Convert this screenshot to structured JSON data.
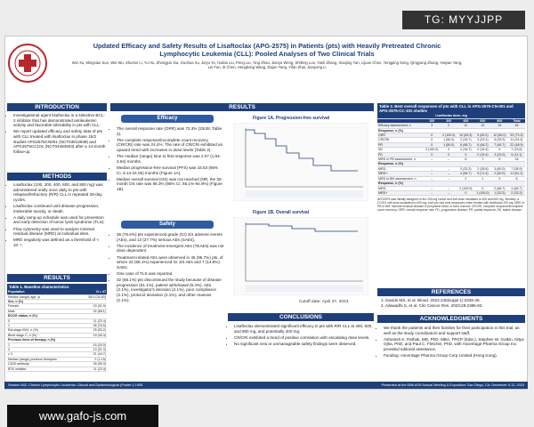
{
  "watermark_top": "TG: MYYJJPP",
  "watermark_bottom": "www.gafo-js.com",
  "header": {
    "title": "Updated Efficacy and Safety Results of Lisaftoclax (APG-2575) in Patients (pts) with Heavily Pretreated Chronic Lymphocytic Leukemia (CLL): Pooled Analyses of Two Clinical Trials",
    "authors": "Wei Xu, Mingxiao Sun, Wei Wu, Shumin Li, Yu Hu, Zhongjun Xia, Guohua Xu, Jieyu Ye, Huilan Liu, Peng Liu, Ying Zhao, Jianyu Weng, Shifeng Lou, Yanli Zhang, Xiaojing Yan, Lijuan Chen, Yongping Song, Qingyang Zhang, Haiyan Yang, Lei Fan, Zi Chen, Hengbang Wang, Dajun Yang, Yifan Zhai, Jianyong Li"
  },
  "introduction": {
    "heading": "INTRODUCTION",
    "bullets": [
      "Investigational agent lisaftoclax is a selective BCL-2 inhibitor that has demonstrated antileukemic activity and favorable tolerability in pts with CLL.",
      "We report updated efficacy and safety data of pts with CLL treated with lisaftoclax in phase 1b/2 studies APG2575CN001 (NCT03913949) and APG2575CC101 (NCT04494503) after a 14-month follow-up."
    ]
  },
  "methods": {
    "heading": "METHODS",
    "bullets": [
      "Lisaftoclax (100, 200, 400, 600, and 800 mg) was administered orally once daily to pts with relapsed/refractory (R/R) CLL in repeated 28-day cycles.",
      "Lisaftoclax continued until disease progression, intolerable toxicity, or death.",
      "A daily ramp-up schedule was used for prevention and early detection of tumor lysis syndrome (TLS).",
      "Flow cytometry was used to analyze minimal residual disease (MRD) at individual sites.",
      "MRD negativity was defined as a threshold of < 10⁻⁴."
    ]
  },
  "results_left": {
    "heading": "RESULTS",
    "table": {
      "title": "Table 1. Baseline characteristics",
      "header": [
        "Population",
        "N = 47"
      ],
      "rows": [
        [
          "Median (range) age, yr",
          "58.0 (34-80)"
        ],
        [
          "Sex, n (%)"
        ],
        [
          "Female",
          "15 (31.9)"
        ],
        [
          "Male",
          "32 (68.1)"
        ],
        [
          "ECOG status, n (%)"
        ],
        [
          "0",
          "11 (23.4)"
        ],
        [
          "1",
          "36 (76.6)"
        ],
        [
          "Rai stage III/IV, n (%)",
          "25 (53.2)"
        ],
        [
          "Binet stage C, n (%)",
          "19 (40.4)"
        ],
        [
          "Previous lines of therapy, n (%)"
        ],
        [
          "1",
          "16 (34.0)"
        ],
        [
          "2",
          "10 (21.3)"
        ],
        [
          "≥ 3",
          "21 (44.7)"
        ],
        [
          "Median (range) previous therapies",
          "2 (1-15)"
        ],
        [
          "CD20 antibody",
          "26 (55.3)"
        ],
        [
          "BTK inhibitor",
          "11 (23.4)"
        ]
      ]
    }
  },
  "results_main": {
    "heading": "RESULTS",
    "efficacy": {
      "heading": "Efficacy",
      "bullets": [
        "The overall response rate (ORR) was 73.3% (33/45; Table 2).",
        "The complete response/incomplete count recovery (CR/CRi) rate was 24.4%. The rate of CR/CRi exhibited an upward trend with increases in dose levels (Table 2).",
        "The median (range) time to first response was 2.07 (1.94-3.94) months.",
        "Median progression-free survival (PFS) was 18.53 (95% CI, 9.13-24.05) months (Figure 1A).",
        "Median overall survival (OS) was not reached (NR; the 30-month OS rate was 86.3% (95% CI, 66.1%-94.9%) (Figure 1B)."
      ]
    },
    "safety": {
      "heading": "Safety",
      "bullets": [
        "36 (76.6%) pts experienced grade (Gr) 3/4 adverse events (AEs), and 13 (27.7%) serious AEs (SAEs).",
        "The incidence of treatment-emergent AEs (TEAEs) was not dose dependent.",
        "Treatment-related AEs were observed in 45 (95.7%) pts, of whom 32 (68.1%) experienced Gr 3/4 AEs and 7 (14.9%) SAEs.",
        "One case of TLS was reported.",
        "32 (68.1%) pts discontinued the study because of disease progression (51.1%), patient withdrawal (6.4%), AEs (2.1%), investigator's decision (2.1%), poor compliance (2.1%), protocol deviation (2.1%), and other reasons (2.1%)."
      ]
    },
    "figure_1a": "Figure 1A. Progression-free survival",
    "figure_1b": "Figure 1B. Overall survival",
    "cutoff": "Cutoff date: April 27, 2023."
  },
  "conclusions": {
    "heading": "CONCLUSIONS",
    "bullets": [
      "Lisaftoclax demonstrated significant efficacy in pts with R/R CLL at 400, 600, and 800 mg, and potentially 200 mg.",
      "CR/CRi exhibited a trend of positive correlation with escalating dose levels.",
      "No significant new or unmanageable safety findings were observed."
    ]
  },
  "table_2": {
    "title": "Table 2. Best overall responses of pts with CLL in APG-2575-CN-001 and APG-2575-CC-101 studies",
    "dose_header": "Lisaftoclax dose, mg",
    "doses": [
      "100",
      "200",
      "400",
      "600",
      "800",
      "Total"
    ],
    "rows": [
      [
        "Efficacy assessment, n",
        "3",
        "2",
        "12",
        "13",
        "15",
        "45"
      ],
      [
        "Response, n (%)"
      ],
      [
        "ORR",
        "0",
        "2 (100.0)",
        "10 (83.3)",
        "9 (69.2)",
        "12 (80.0)",
        "33 (73.3)"
      ],
      [
        "CR/CRi",
        "0",
        "1 (50.0)",
        "2 (16.7)",
        "3 (23.1)",
        "5 (33.3)",
        "11 (24.4)"
      ],
      [
        "PR",
        "0",
        "1 (50.0)",
        "8 (66.7)",
        "6 (46.2)",
        "7 (46.7)",
        "22 (48.9)"
      ],
      [
        "SD",
        "3 (100.0)",
        "0",
        "2 (16.7)",
        "2 (15.4)",
        "0",
        "7 (15.6)"
      ],
      [
        "PD",
        "0",
        "0",
        "0",
        "2 (15.4)",
        "3 (20.0)",
        "5 (11.1)"
      ],
      [
        "MRD in PB assessment, n",
        "–",
        "–",
        "6",
        "7",
        "5",
        "18"
      ],
      [
        "Response, n (%)"
      ],
      [
        "MRD-",
        "–",
        "–",
        "2 (33.3)",
        "2 (28.6)",
        "3 (60.0)",
        "7 (38.9)"
      ],
      [
        "MRD+",
        "–",
        "–",
        "4 (66.7)",
        "5 (71.4)",
        "2 (40.0)",
        "11 (61.1)"
      ],
      [
        "MRD in BM assessment, n",
        "–",
        "–",
        "2",
        "1",
        "3",
        "6"
      ],
      [
        "Response, n (%)"
      ],
      [
        "MRD-",
        "–",
        "–",
        "2 (100.0)",
        "0",
        "2 (66.7)",
        "4 (66.7)"
      ],
      [
        "MRD+",
        "–",
        "–",
        "0",
        "1 (100.0)",
        "1 (33.3)",
        "2 (33.3)"
      ]
    ],
    "note": "APG2575 was initially assigned to the 200-mg cohort and self-dose escalated to 400 and 600 mg. Similarly, a CC001 self-dose escalated to 600 mg; both pts had best responses when treated with lisaftoclax 200 mg. MRD in PB or BM: minimal residual disease in peripheral blood or bone marrow; CR/CRi, complete response/incomplete count recovery; ORR, overall response rate; PD, progressive disease; PR, partial response; SD, stable disease."
  },
  "references": {
    "heading": "REFERENCES",
    "items": [
      "1. Davids MS, et al. Blood. 2022;140(suppl 1):2326-28.",
      "2. Ailawadhi S, et al. Clin Cancer Res. 2023;29:2385-93."
    ]
  },
  "acknowledgments": {
    "heading": "ACKNOWLEDGMENTS",
    "bullets": [
      "We thank the patients and their families for their participation in this trial, as well as the study coordinators and support staff.",
      "Ashutosh K. Pathak, MD, PhD, MBA, FRCP (Edin.), Stephen W. Gutkin, Nitya Ojha, PhD, and Paul C. Fletcher, PhD, with Ascentage Pharma Group Inc. provided editorial assistance.",
      "Funding: Ascentage Pharma Group Corp Limited (Hong Kong)."
    ]
  },
  "footer": {
    "left": "Session 642. Chronic Lymphocytic Leukemia: Clinical and Epidemiological (Poster I) 1908",
    "right": "Presented at the 65th ASH Annual Meeting & Exposition; San Diego, CA; December 9-12, 2023"
  }
}
